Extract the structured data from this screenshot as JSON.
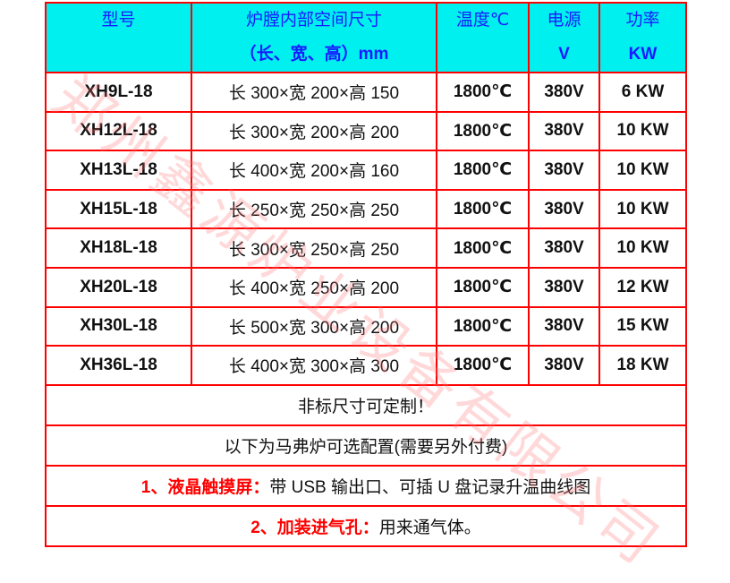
{
  "header": {
    "model": "型号",
    "size_line1": "炉膛内部空间尺寸",
    "size_line2": "（长、宽、高）mm",
    "temp": "温度℃",
    "power_line1": "电源",
    "power_line2": "V",
    "watt_line1": "功率",
    "watt_line2": "KW"
  },
  "rows": [
    {
      "model": "XH9L-18",
      "size": "长 300×宽 200×高 150",
      "temp": "1800℃",
      "voltage": "380V",
      "power": "6 KW"
    },
    {
      "model": "XH12L-18",
      "size": "长 300×宽 200×高 200",
      "temp": "1800℃",
      "voltage": "380V",
      "power": "10 KW"
    },
    {
      "model": "XH13L-18",
      "size": "长 400×宽 200×高 160",
      "temp": "1800℃",
      "voltage": "380V",
      "power": "10 KW"
    },
    {
      "model": "XH15L-18",
      "size": "长 250×宽 250×高 250",
      "temp": "1800℃",
      "voltage": "380V",
      "power": "10 KW"
    },
    {
      "model": "XH18L-18",
      "size": "长 300×宽 250×高 250",
      "temp": "1800℃",
      "voltage": "380V",
      "power": "10 KW"
    },
    {
      "model": "XH20L-18",
      "size": "长 400×宽 250×高 200",
      "temp": "1800℃",
      "voltage": "380V",
      "power": "12 KW"
    },
    {
      "model": "XH30L-18",
      "size": "长 500×宽 300×高 200",
      "temp": "1800℃",
      "voltage": "380V",
      "power": "15 KW"
    },
    {
      "model": "XH36L-18",
      "size": "长 400×宽 300×高 300",
      "temp": "1800℃",
      "voltage": "380V",
      "power": "18 KW"
    }
  ],
  "notes": {
    "custom": "非标尺寸可定制！",
    "options": "以下为马弗炉可选配置(需要另外付费)",
    "opt1_label": "1、液晶触摸屏：",
    "opt1_text": "带 USB 输出口、可插 U 盘记录升温曲线图",
    "opt2_label": "2、加装进气孔：",
    "opt2_text": "用来通气体。"
  },
  "watermark": "郑州鑫源炉业设备有限公司",
  "colors": {
    "border": "#ff0000",
    "header_bg": "#00f0f0",
    "header_text": "#1a1aff"
  }
}
